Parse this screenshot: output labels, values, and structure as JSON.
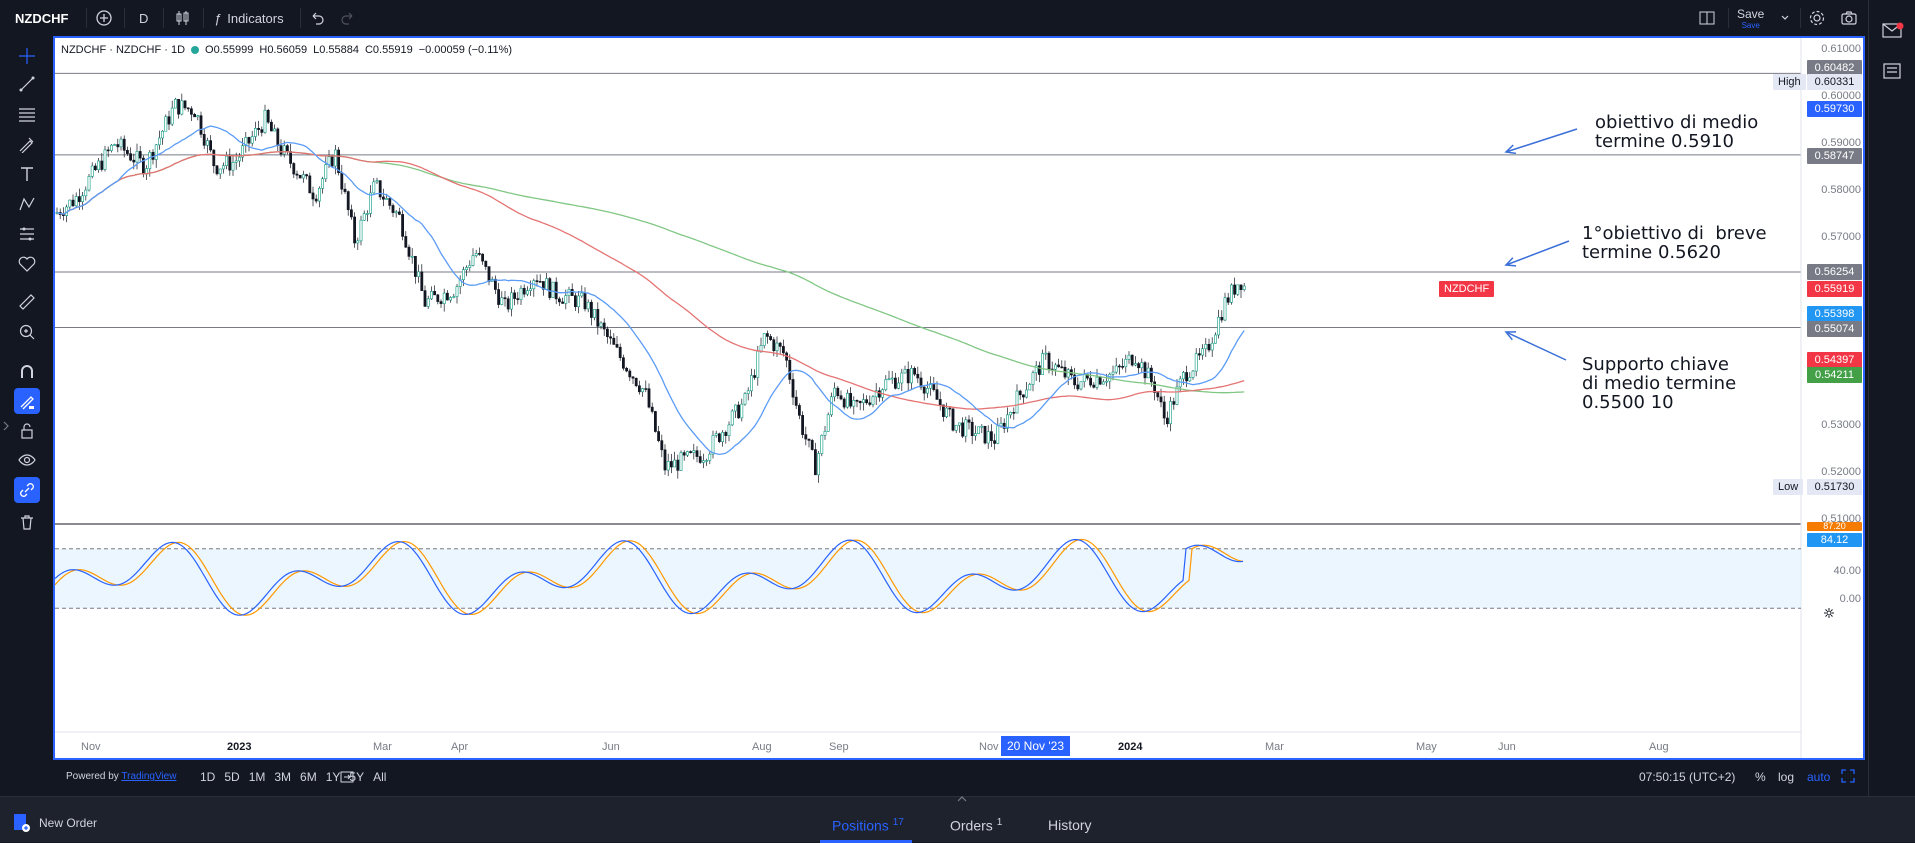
{
  "topbar": {
    "symbol": "NZDCHF",
    "interval": "D",
    "indicators_label": "Indicators",
    "save_label": "Save",
    "save_sub": "Save"
  },
  "legend": {
    "title": "NZDCHF · NZDCHF · 1D",
    "open": "O0.55999",
    "high": "H0.56059",
    "low": "L0.55884",
    "close": "C0.55919",
    "change": "−0.00059 (−0.11%)"
  },
  "price_axis": {
    "labels": [
      "0.61000",
      "0.60000",
      "0.59000",
      "0.58000",
      "0.57000",
      "0.53000",
      "0.52000",
      "0.51000"
    ],
    "tags": {
      "h1": "0.60482",
      "high_label": "High",
      "high_value": "0.60331",
      "blue_top": "0.59730",
      "h2": "0.58747",
      "h3": "0.56254",
      "symbol_tag": "NZDCHF",
      "last_price": "0.55919",
      "ma_blue": "0.55398",
      "h4": "0.55074",
      "ma_red": "0.54397",
      "ma_green": "0.54211",
      "low_label": "Low",
      "low_value": "0.51730"
    }
  },
  "osc_axis": {
    "tag_orange": "87.20",
    "tag_blue": "84.12",
    "label_40": "40.00",
    "label_0": "0.00"
  },
  "annotations": {
    "target_mid": "obiettivo di medio\ntermine 0.5910",
    "target_short": "1°obiettivo di  breve\ntermine 0.5620",
    "support": "Supporto chiave\ndi medio termine\n0.5500 10"
  },
  "time_axis": {
    "labels": [
      {
        "t": "Nov",
        "bold": false
      },
      {
        "t": "2023",
        "bold": true
      },
      {
        "t": "Mar",
        "bold": false
      },
      {
        "t": "Apr",
        "bold": false
      },
      {
        "t": "Jun",
        "bold": false
      },
      {
        "t": "Aug",
        "bold": false
      },
      {
        "t": "Sep",
        "bold": false
      },
      {
        "t": "Nov",
        "bold": false
      },
      {
        "t": "2024",
        "bold": true
      },
      {
        "t": "Mar",
        "bold": false
      },
      {
        "t": "May",
        "bold": false
      },
      {
        "t": "Jun",
        "bold": false
      },
      {
        "t": "Aug",
        "bold": false
      }
    ],
    "crosshair_date": "20 Nov '23"
  },
  "bottombar": {
    "powered": "Powered by",
    "brand": "TradingView",
    "ranges": [
      "1D",
      "5D",
      "1M",
      "3M",
      "6M",
      "1Y",
      "5Y",
      "All"
    ],
    "clock": "07:50:15 (UTC+2)",
    "pct": "%",
    "log": "log",
    "auto": "auto"
  },
  "panel": {
    "new_order": "New Order",
    "positions": "Positions",
    "positions_count": "17",
    "orders": "Orders",
    "orders_count": "1",
    "history": "History"
  },
  "colors": {
    "accent": "#2962ff",
    "up": "#26a69a",
    "down": "#ef5350",
    "ma_blue": "#5b9cf6",
    "ma_red": "#e57373",
    "ma_green": "#81c784"
  }
}
